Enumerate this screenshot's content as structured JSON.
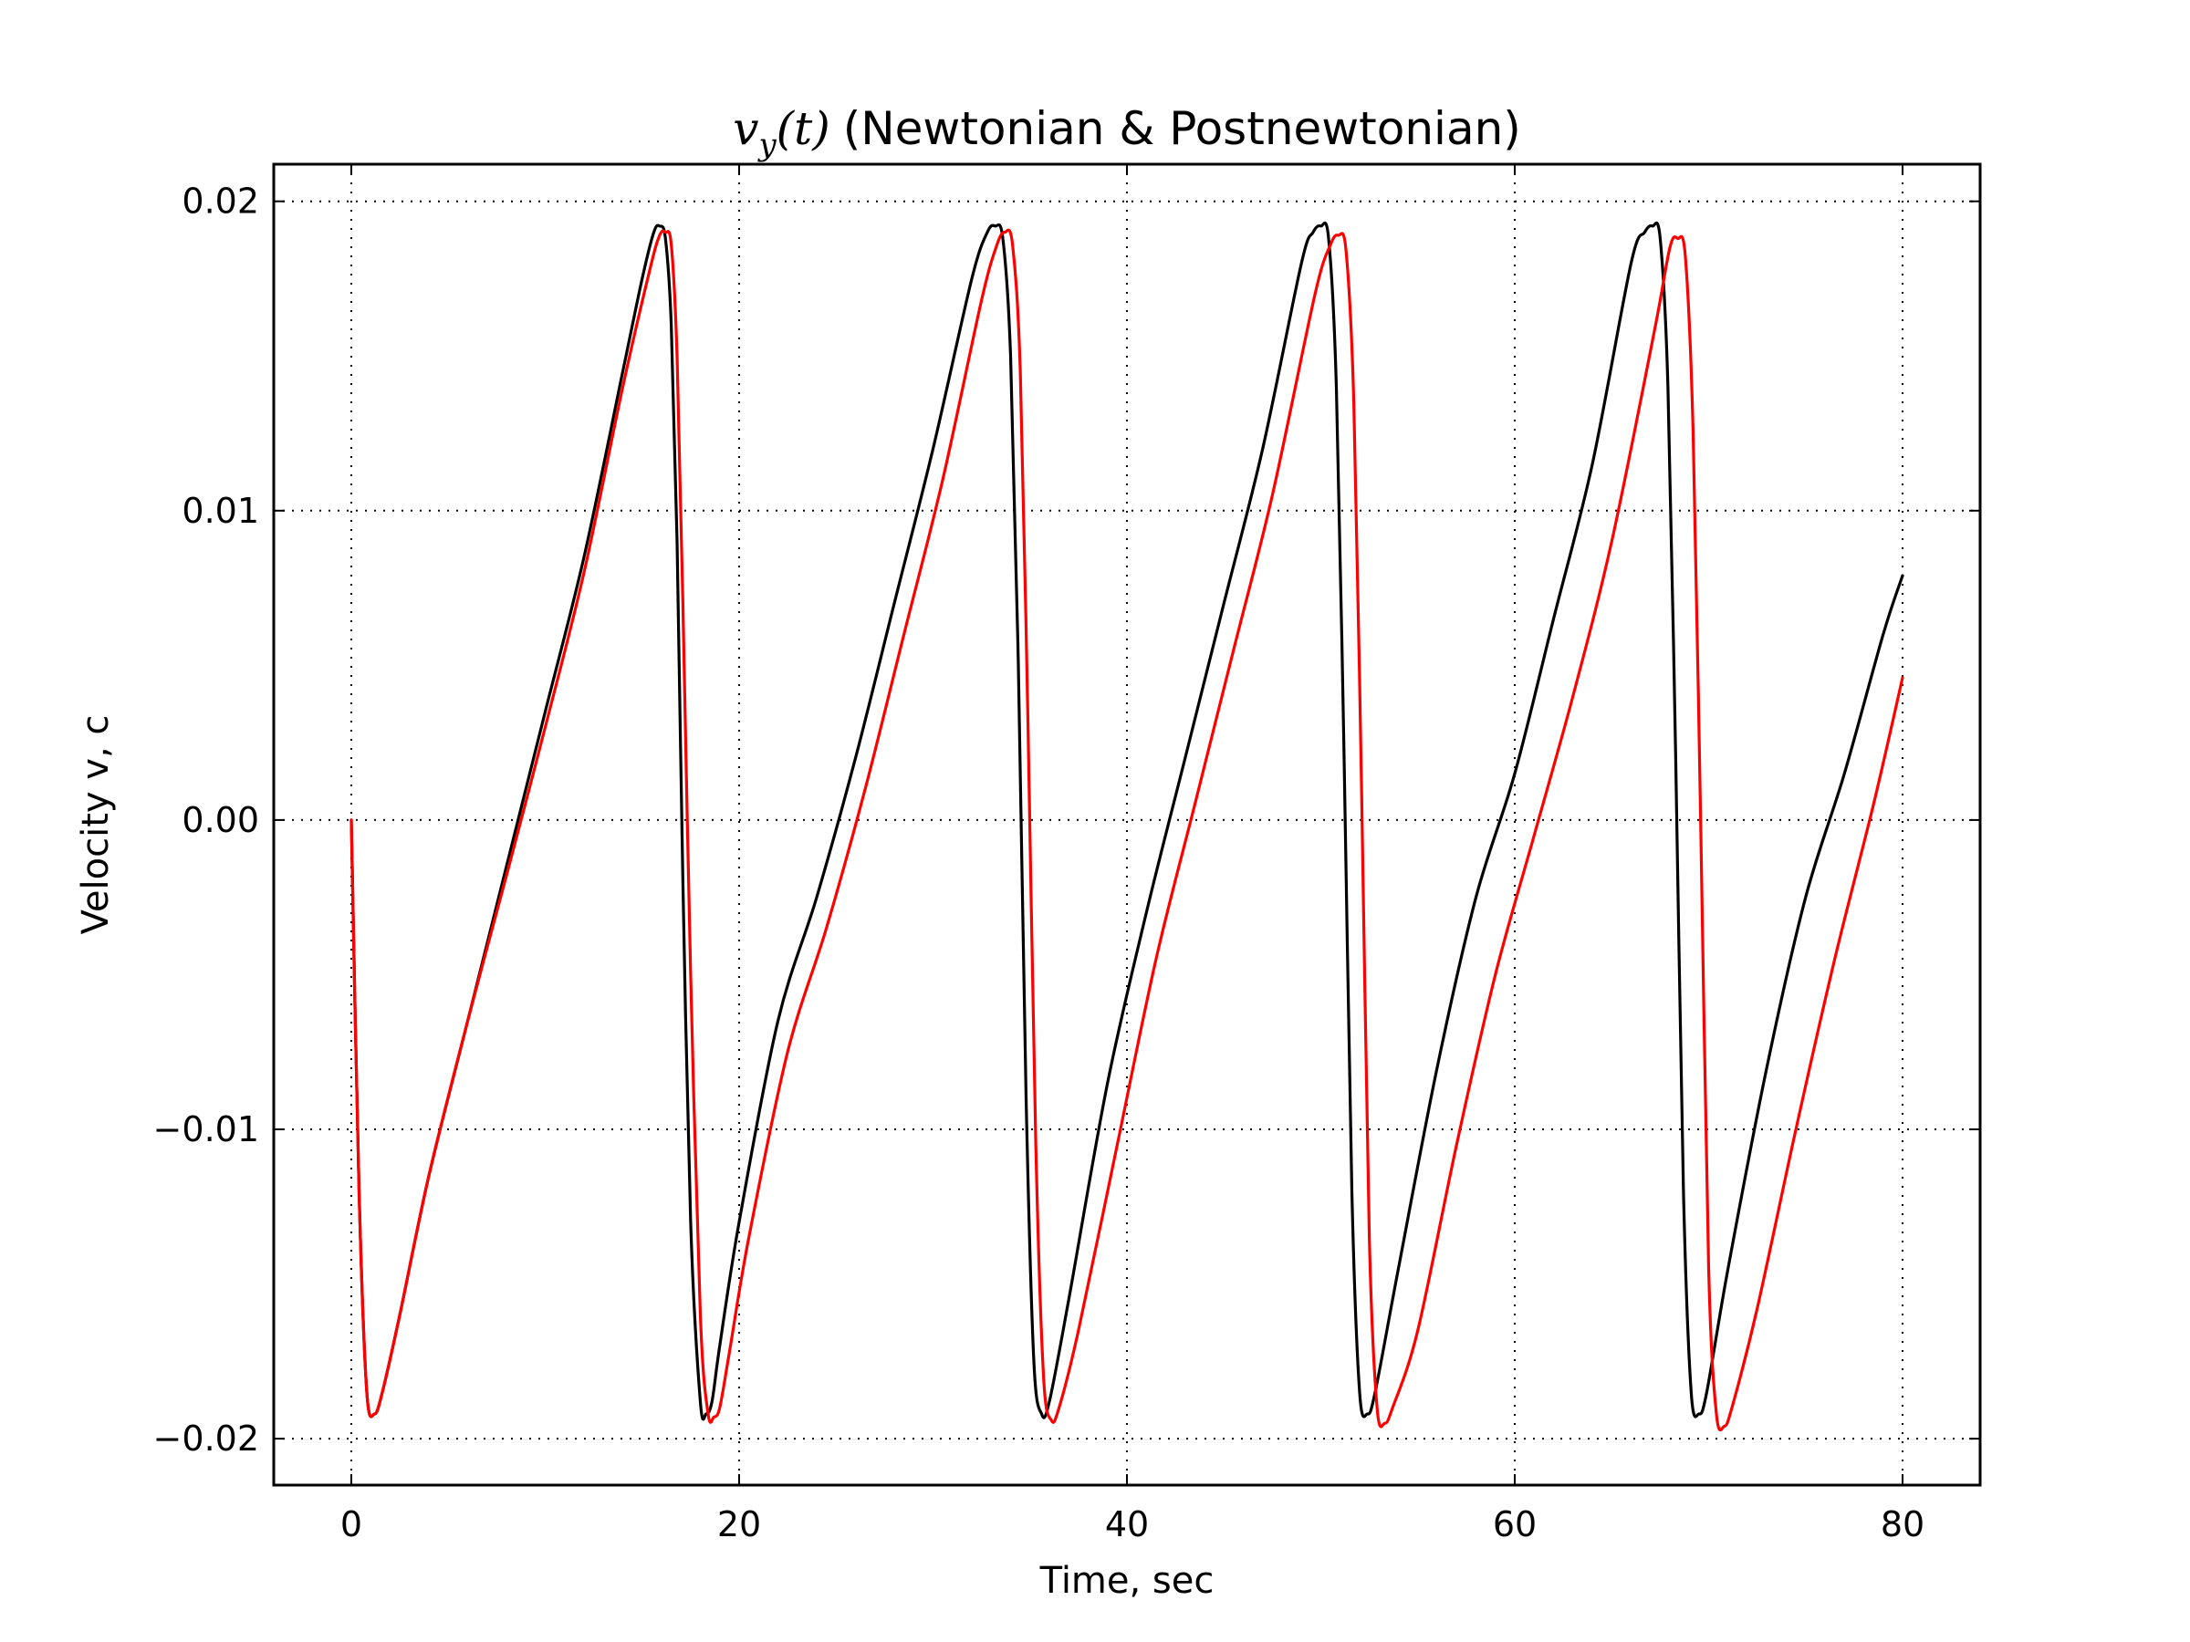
{
  "chart_data": {
    "type": "line",
    "title": "(Newtonian & Postnewtonian)",
    "title_math": "v_y(t)",
    "xlabel": "Time, sec",
    "ylabel": "Velocity v, c",
    "xlim": [
      -4,
      84
    ],
    "ylim": [
      -0.0215,
      0.0212
    ],
    "xticks": [
      0,
      20,
      40,
      60,
      80
    ],
    "xtick_labels": [
      "0",
      "20",
      "40",
      "60",
      "80"
    ],
    "yticks": [
      -0.02,
      -0.01,
      0.0,
      0.01,
      0.02
    ],
    "ytick_labels": [
      "−0.02",
      "−0.01",
      "0.00",
      "0.01",
      "0.02"
    ],
    "grid": true,
    "legend": "none",
    "series": [
      {
        "color": "#000000",
        "x": [
          0,
          0.4,
          0.8,
          1.2,
          1.6,
          2.5,
          4,
          6,
          8,
          10,
          12,
          14,
          15,
          15.6,
          15.9,
          16.2,
          16.5,
          16.8,
          17.1,
          17.5,
          18,
          18.3,
          18.6,
          19,
          20,
          22,
          24,
          26,
          28,
          30,
          32,
          32.8,
          33.2,
          33.6,
          34,
          34.4,
          34.8,
          35.2,
          35.6,
          36,
          37,
          39,
          41,
          43,
          45,
          47,
          49,
          49.6,
          50,
          50.4,
          50.8,
          51.2,
          51.6,
          52,
          52.4,
          52.8,
          54,
          56,
          58,
          60,
          62,
          64,
          66,
          66.7,
          67.1,
          67.5,
          67.9,
          68.3,
          68.7,
          69.1,
          69.5,
          69.9,
          71,
          73,
          75,
          77,
          79,
          80
        ],
        "y": [
          0.0,
          -0.012,
          -0.0185,
          -0.0192,
          -0.0185,
          -0.016,
          -0.0115,
          -0.0065,
          -0.0015,
          0.0035,
          0.0085,
          0.0145,
          0.0175,
          0.019,
          0.0192,
          0.0188,
          0.016,
          0.009,
          -0.002,
          -0.013,
          -0.0188,
          -0.0192,
          -0.0188,
          -0.017,
          -0.013,
          -0.0065,
          -0.0025,
          0.002,
          0.007,
          0.012,
          0.0175,
          0.019,
          0.0192,
          0.0188,
          0.015,
          0.005,
          -0.009,
          -0.0175,
          -0.0192,
          -0.0188,
          -0.0155,
          -0.0085,
          -0.003,
          0.002,
          0.007,
          0.012,
          0.018,
          0.019,
          0.0192,
          0.0188,
          0.014,
          0.002,
          -0.012,
          -0.0185,
          -0.0192,
          -0.0185,
          -0.0145,
          -0.008,
          -0.0025,
          0.0015,
          0.0065,
          0.0115,
          0.018,
          0.019,
          0.0192,
          0.0188,
          0.014,
          0.002,
          -0.012,
          -0.0185,
          -0.0192,
          -0.0185,
          -0.0145,
          -0.008,
          -0.0025,
          0.0015,
          0.006,
          0.0079
        ]
      },
      {
        "color": "#ff0000",
        "x": [
          0,
          0.4,
          0.8,
          1.2,
          1.6,
          2.5,
          4,
          6,
          8,
          10,
          12,
          14,
          15.4,
          15.9,
          16.2,
          16.5,
          16.8,
          17.1,
          17.5,
          18,
          18.4,
          18.7,
          19,
          19.5,
          20.5,
          22.5,
          24.5,
          26.5,
          28.5,
          30.5,
          32.5,
          33.3,
          33.7,
          34.1,
          34.5,
          34.9,
          35.3,
          35.7,
          36.1,
          36.5,
          37.5,
          39.5,
          41.5,
          43.5,
          45.5,
          47.5,
          49.7,
          50.5,
          50.9,
          51.3,
          51.7,
          52.1,
          52.5,
          52.9,
          53.3,
          53.7,
          55,
          57,
          59,
          61,
          63,
          65,
          67.2,
          68,
          68.4,
          68.8,
          69.2,
          69.6,
          70,
          70.4,
          70.8,
          71.2,
          72.5,
          74.5,
          76.5,
          78.5,
          80
        ],
        "y": [
          0.0,
          -0.012,
          -0.0185,
          -0.0192,
          -0.0185,
          -0.016,
          -0.0115,
          -0.0065,
          -0.0018,
          0.003,
          0.008,
          0.014,
          0.0178,
          0.0189,
          0.019,
          0.0186,
          0.015,
          0.007,
          -0.005,
          -0.016,
          -0.0192,
          -0.0193,
          -0.019,
          -0.0172,
          -0.0135,
          -0.0075,
          -0.0035,
          0.001,
          0.006,
          0.011,
          0.0168,
          0.0186,
          0.019,
          0.0186,
          0.0145,
          0.003,
          -0.0105,
          -0.018,
          -0.0194,
          -0.019,
          -0.0165,
          -0.0105,
          -0.0045,
          0.0005,
          0.0055,
          0.0105,
          0.017,
          0.0186,
          0.0189,
          0.0184,
          0.0135,
          0.001,
          -0.0135,
          -0.019,
          -0.0195,
          -0.019,
          -0.0165,
          -0.0105,
          -0.005,
          -0.0005,
          0.004,
          0.009,
          0.0158,
          0.0185,
          0.0188,
          0.0182,
          0.0125,
          -0.0005,
          -0.0145,
          -0.0192,
          -0.0196,
          -0.019,
          -0.0158,
          -0.01,
          -0.0045,
          0.0005,
          0.0046
        ]
      }
    ]
  }
}
